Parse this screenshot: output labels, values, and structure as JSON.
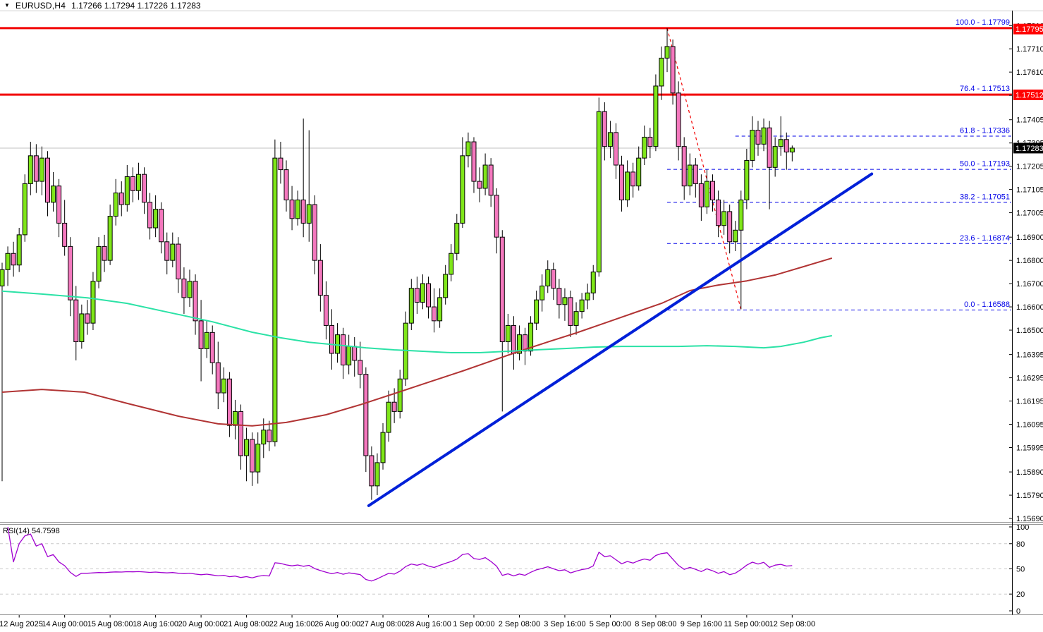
{
  "header": {
    "dropdown_icon": "▼",
    "symbol_period": "EURUSD,H4",
    "ohlc_text": "1.17266 1.17294 1.17226 1.17283"
  },
  "colors": {
    "bull": "#7FE619",
    "bear": "#F478BE",
    "wick": "#000000",
    "candle_outline": "#000000",
    "fib_solid_red": "#F20000",
    "fib_blue": "#0000E8",
    "fib_base_red_dashed": "#F20000",
    "trend_blue": "#0020D8",
    "ma_fast_teal": "#2BE2A6",
    "ma_slow_darkred": "#B13434",
    "rsi_purple": "#A000D0",
    "price_box_red_bg": "#FF0000",
    "price_box_black_bg": "#000000",
    "price_box_text": "#FFFFFF",
    "axis_text": "#000000",
    "rsi_grid_dash": "#C8C8C8",
    "current_price_line": "#C0C0C0",
    "separator": "#999999",
    "top_border": "#CCCCCC",
    "axis_line": "#000000"
  },
  "price_axis": {
    "labels": [
      {
        "text": "1.17810",
        "price": 1.1781
      },
      {
        "text": "1.17710",
        "price": 1.1771
      },
      {
        "text": "1.17610",
        "price": 1.1761
      },
      {
        "text": "1.17510",
        "price": 1.1751
      },
      {
        "text": "1.17405",
        "price": 1.17405
      },
      {
        "text": "1.17305",
        "price": 1.17305
      },
      {
        "text": "1.17205",
        "price": 1.17205
      },
      {
        "text": "1.17105",
        "price": 1.17105
      },
      {
        "text": "1.17005",
        "price": 1.17005
      },
      {
        "text": "1.16900",
        "price": 1.169
      },
      {
        "text": "1.16800",
        "price": 1.168
      },
      {
        "text": "1.16700",
        "price": 1.167
      },
      {
        "text": "1.16600",
        "price": 1.166
      },
      {
        "text": "1.16500",
        "price": 1.165
      },
      {
        "text": "1.16395",
        "price": 1.16395
      },
      {
        "text": "1.16295",
        "price": 1.16295
      },
      {
        "text": "1.16195",
        "price": 1.16195
      },
      {
        "text": "1.16095",
        "price": 1.16095
      },
      {
        "text": "1.15995",
        "price": 1.15995
      },
      {
        "text": "1.15890",
        "price": 1.1589
      },
      {
        "text": "1.15790",
        "price": 1.1579
      },
      {
        "text": "1.15690",
        "price": 1.1569
      }
    ],
    "boxes": [
      {
        "text": "1.17795",
        "price": 1.17795,
        "bg": "red"
      },
      {
        "text": "1.17512",
        "price": 1.17512,
        "bg": "red"
      },
      {
        "text": "1.17283",
        "price": 1.17283,
        "bg": "black"
      }
    ]
  },
  "time_axis": {
    "labels": [
      {
        "text": "12 Aug 2025",
        "i": 3
      },
      {
        "text": "14 Aug 00:00",
        "i": 11
      },
      {
        "text": "15 Aug 08:00",
        "i": 19
      },
      {
        "text": "18 Aug 16:00",
        "i": 27
      },
      {
        "text": "20 Aug 00:00",
        "i": 35
      },
      {
        "text": "21 Aug 08:00",
        "i": 43
      },
      {
        "text": "22 Aug 16:00",
        "i": 51
      },
      {
        "text": "26 Aug 00:00",
        "i": 59
      },
      {
        "text": "27 Aug 08:00",
        "i": 67
      },
      {
        "text": "28 Aug 16:00",
        "i": 75
      },
      {
        "text": "1 Sep 00:00",
        "i": 83
      },
      {
        "text": "2 Sep 08:00",
        "i": 91
      },
      {
        "text": "3 Sep 16:00",
        "i": 99
      },
      {
        "text": "5 Sep 00:00",
        "i": 107
      },
      {
        "text": "8 Sep 08:00",
        "i": 115
      },
      {
        "text": "9 Sep 16:00",
        "i": 123
      },
      {
        "text": "11 Sep 00:00",
        "i": 131
      },
      {
        "text": "12 Sep 08:00",
        "i": 139
      }
    ]
  },
  "overlays": {
    "fib_solid": [
      {
        "label": "100.0 - 1.17799",
        "price": 1.17799
      },
      {
        "label": "76.4 - 1.17513",
        "price": 1.17513
      }
    ],
    "fib_dashed": [
      {
        "label": "61.8 - 1.17336",
        "price": 1.17336,
        "start_i": 129
      },
      {
        "label": "50.0 - 1.17193",
        "price": 1.17193,
        "start_i": 117
      },
      {
        "label": "38.2 - 1.17051",
        "price": 1.17051,
        "start_i": 117
      },
      {
        "label": "23.6 - 1.16874",
        "price": 1.16874,
        "start_i": 117
      },
      {
        "label": "0.0 - 1.16588",
        "price": 1.16588,
        "start_i": 117
      }
    ],
    "fib_base_dashed_red": {
      "from_i": 117,
      "from_price": 1.17799,
      "to_i": 130,
      "to_price": 1.16588
    },
    "trend_line": {
      "from_i": 64.5,
      "from_price": 1.15745,
      "to_i": 153,
      "to_price": 1.17172
    },
    "ma_fast_points": [
      [
        0,
        1.16668
      ],
      [
        7,
        1.16655
      ],
      [
        15,
        1.16639
      ],
      [
        22,
        1.16615
      ],
      [
        29,
        1.16578
      ],
      [
        37,
        1.16536
      ],
      [
        44,
        1.16491
      ],
      [
        49,
        1.16467
      ],
      [
        54,
        1.16448
      ],
      [
        59,
        1.16436
      ],
      [
        64,
        1.16424
      ],
      [
        69,
        1.16415
      ],
      [
        74,
        1.16409
      ],
      [
        79,
        1.16403
      ],
      [
        84,
        1.16403
      ],
      [
        89,
        1.16409
      ],
      [
        94,
        1.16415
      ],
      [
        99,
        1.16421
      ],
      [
        104,
        1.16427
      ],
      [
        109,
        1.1643
      ],
      [
        119,
        1.1643
      ],
      [
        124,
        1.16433
      ],
      [
        129,
        1.1643
      ],
      [
        134,
        1.16424
      ],
      [
        137,
        1.1643
      ],
      [
        141,
        1.16448
      ],
      [
        144,
        1.16467
      ],
      [
        146,
        1.16476
      ]
    ],
    "ma_slow_points": [
      [
        0,
        1.16233
      ],
      [
        7,
        1.16245
      ],
      [
        14.5,
        1.16233
      ],
      [
        22,
        1.16185
      ],
      [
        31,
        1.1613
      ],
      [
        38,
        1.16097
      ],
      [
        44,
        1.16088
      ],
      [
        50,
        1.16103
      ],
      [
        57,
        1.16136
      ],
      [
        63,
        1.16179
      ],
      [
        69,
        1.16227
      ],
      [
        75,
        1.16276
      ],
      [
        81,
        1.16324
      ],
      [
        86,
        1.16367
      ],
      [
        91,
        1.16409
      ],
      [
        96,
        1.16449
      ],
      [
        101,
        1.16488
      ],
      [
        106,
        1.1653
      ],
      [
        111,
        1.16573
      ],
      [
        116,
        1.16615
      ],
      [
        121,
        1.1667
      ],
      [
        126,
        1.16694
      ],
      [
        131,
        1.16712
      ],
      [
        136,
        1.16737
      ],
      [
        141,
        1.16773
      ],
      [
        146,
        1.1681
      ]
    ]
  },
  "rsi": {
    "label": "RSI(14) 54.7598",
    "period": 14,
    "value": 54.7598,
    "axis_labels": [
      100,
      80,
      50,
      20,
      0
    ],
    "dashed_levels": [
      80,
      50,
      20
    ]
  },
  "chart_data": {
    "type": "candlestick",
    "title": "EURUSD,H4",
    "symbol": "EURUSD",
    "timeframe": "H4",
    "ylim": [
      1.15675,
      1.17875
    ],
    "last_ohlc": {
      "open": 1.17266,
      "high": 1.17294,
      "low": 1.17226,
      "close": 1.17283
    },
    "x_first_label": "12 Aug 2025",
    "x_last_label": "12 Sep 08:00",
    "candles": [
      [
        1.1669,
        1.1679,
        1.1585,
        1.1676
      ],
      [
        1.1676,
        1.1686,
        1.1669,
        1.1683
      ],
      [
        1.1683,
        1.1688,
        1.1673,
        1.1678
      ],
      [
        1.1678,
        1.1694,
        1.1675,
        1.1691
      ],
      [
        1.1691,
        1.1717,
        1.1688,
        1.1713
      ],
      [
        1.1713,
        1.1731,
        1.1708,
        1.1725
      ],
      [
        1.1725,
        1.173,
        1.1709,
        1.1714
      ],
      [
        1.1714,
        1.1729,
        1.1708,
        1.1724
      ],
      [
        1.1724,
        1.1727,
        1.1699,
        1.1705
      ],
      [
        1.1705,
        1.1718,
        1.1701,
        1.1712
      ],
      [
        1.1712,
        1.1715,
        1.169,
        1.1696
      ],
      [
        1.1696,
        1.1706,
        1.1682,
        1.1686
      ],
      [
        1.1686,
        1.169,
        1.1656,
        1.1663
      ],
      [
        1.1663,
        1.1669,
        1.1637,
        1.1645
      ],
      [
        1.1645,
        1.1661,
        1.1642,
        1.1657
      ],
      [
        1.1657,
        1.1663,
        1.1648,
        1.1653
      ],
      [
        1.1653,
        1.1675,
        1.165,
        1.1671
      ],
      [
        1.1671,
        1.169,
        1.1668,
        1.1686
      ],
      [
        1.1686,
        1.1691,
        1.1675,
        1.168
      ],
      [
        1.168,
        1.1704,
        1.1678,
        1.1699
      ],
      [
        1.1699,
        1.1715,
        1.1695,
        1.1709
      ],
      [
        1.1709,
        1.1714,
        1.1699,
        1.1704
      ],
      [
        1.1704,
        1.1721,
        1.1701,
        1.1716
      ],
      [
        1.1716,
        1.172,
        1.1705,
        1.171
      ],
      [
        1.171,
        1.1722,
        1.1706,
        1.1717
      ],
      [
        1.1717,
        1.172,
        1.17,
        1.1705
      ],
      [
        1.1705,
        1.1709,
        1.1689,
        1.1694
      ],
      [
        1.1694,
        1.1708,
        1.169,
        1.1702
      ],
      [
        1.1702,
        1.1705,
        1.1683,
        1.1688
      ],
      [
        1.1688,
        1.1692,
        1.1674,
        1.168
      ],
      [
        1.168,
        1.1692,
        1.1677,
        1.1687
      ],
      [
        1.1687,
        1.169,
        1.1666,
        1.1672
      ],
      [
        1.1672,
        1.1677,
        1.1657,
        1.1664
      ],
      [
        1.1664,
        1.1676,
        1.166,
        1.1671
      ],
      [
        1.1671,
        1.1674,
        1.1648,
        1.1654
      ],
      [
        1.1654,
        1.1663,
        1.1628,
        1.1642
      ],
      [
        1.1642,
        1.1654,
        1.1638,
        1.1649
      ],
      [
        1.1649,
        1.1652,
        1.1631,
        1.1636
      ],
      [
        1.1636,
        1.1645,
        1.1616,
        1.1623
      ],
      [
        1.1623,
        1.1634,
        1.1619,
        1.1629
      ],
      [
        1.1629,
        1.1632,
        1.1604,
        1.1609
      ],
      [
        1.1609,
        1.162,
        1.1603,
        1.1615
      ],
      [
        1.1615,
        1.1618,
        1.159,
        1.1596
      ],
      [
        1.1596,
        1.1608,
        1.1585,
        1.1603
      ],
      [
        1.1603,
        1.1606,
        1.1583,
        1.1589
      ],
      [
        1.1589,
        1.1606,
        1.1584,
        1.1601
      ],
      [
        1.1601,
        1.1612,
        1.1595,
        1.1607
      ],
      [
        1.1607,
        1.1611,
        1.1598,
        1.1602
      ],
      [
        1.1602,
        1.1732,
        1.16,
        1.1724
      ],
      [
        1.1724,
        1.1731,
        1.1713,
        1.1719
      ],
      [
        1.1719,
        1.1723,
        1.1701,
        1.1706
      ],
      [
        1.1706,
        1.1712,
        1.1693,
        1.1698
      ],
      [
        1.1698,
        1.171,
        1.1695,
        1.1706
      ],
      [
        1.1706,
        1.1741,
        1.169,
        1.1696
      ],
      [
        1.1696,
        1.1736,
        1.1688,
        1.1704
      ],
      [
        1.1704,
        1.1708,
        1.1674,
        1.168
      ],
      [
        1.168,
        1.1687,
        1.1658,
        1.1665
      ],
      [
        1.1665,
        1.1671,
        1.1646,
        1.1652
      ],
      [
        1.1652,
        1.1659,
        1.1633,
        1.164
      ],
      [
        1.164,
        1.1653,
        1.1636,
        1.1648
      ],
      [
        1.1648,
        1.1651,
        1.1629,
        1.1635
      ],
      [
        1.1635,
        1.1648,
        1.1631,
        1.1643
      ],
      [
        1.1643,
        1.1647,
        1.163,
        1.1637
      ],
      [
        1.1637,
        1.1645,
        1.1625,
        1.1631
      ],
      [
        1.1631,
        1.1634,
        1.1589,
        1.1596
      ],
      [
        1.1596,
        1.16,
        1.1577,
        1.1583
      ],
      [
        1.1583,
        1.1597,
        1.1579,
        1.1593
      ],
      [
        1.1593,
        1.161,
        1.159,
        1.1606
      ],
      [
        1.1606,
        1.1624,
        1.1602,
        1.1619
      ],
      [
        1.1619,
        1.1625,
        1.161,
        1.1615
      ],
      [
        1.1615,
        1.1633,
        1.1612,
        1.1629
      ],
      [
        1.1629,
        1.1658,
        1.1626,
        1.1653
      ],
      [
        1.1653,
        1.1672,
        1.165,
        1.1668
      ],
      [
        1.1668,
        1.1673,
        1.1657,
        1.1662
      ],
      [
        1.1662,
        1.1674,
        1.1659,
        1.167
      ],
      [
        1.167,
        1.1673,
        1.1655,
        1.166
      ],
      [
        1.166,
        1.1668,
        1.1649,
        1.1654
      ],
      [
        1.1654,
        1.1668,
        1.1651,
        1.1664
      ],
      [
        1.1664,
        1.1678,
        1.1661,
        1.1674
      ],
      [
        1.1674,
        1.1687,
        1.1671,
        1.1683
      ],
      [
        1.1683,
        1.17,
        1.168,
        1.1696
      ],
      [
        1.1696,
        1.1733,
        1.1694,
        1.1725
      ],
      [
        1.1725,
        1.1735,
        1.172,
        1.1731
      ],
      [
        1.1731,
        1.1733,
        1.1709,
        1.1714
      ],
      [
        1.1714,
        1.172,
        1.1705,
        1.1711
      ],
      [
        1.1711,
        1.1726,
        1.1708,
        1.1721
      ],
      [
        1.1721,
        1.1724,
        1.1703,
        1.1708
      ],
      [
        1.1708,
        1.1711,
        1.1683,
        1.169
      ],
      [
        1.169,
        1.1693,
        1.1615,
        1.1645
      ],
      [
        1.1645,
        1.1657,
        1.164,
        1.1652
      ],
      [
        1.1652,
        1.1656,
        1.1633,
        1.164
      ],
      [
        1.164,
        1.1652,
        1.1637,
        1.1648
      ],
      [
        1.1648,
        1.1651,
        1.1635,
        1.1641
      ],
      [
        1.1641,
        1.1656,
        1.1639,
        1.1653
      ],
      [
        1.1653,
        1.1667,
        1.165,
        1.1663
      ],
      [
        1.1663,
        1.1674,
        1.1658,
        1.1669
      ],
      [
        1.1669,
        1.168,
        1.1666,
        1.1676
      ],
      [
        1.1676,
        1.1679,
        1.1663,
        1.1668
      ],
      [
        1.1668,
        1.1672,
        1.1655,
        1.1661
      ],
      [
        1.1661,
        1.1668,
        1.1654,
        1.1664
      ],
      [
        1.1664,
        1.1667,
        1.1647,
        1.1652
      ],
      [
        1.1652,
        1.1662,
        1.1648,
        1.1658
      ],
      [
        1.1658,
        1.1666,
        1.1655,
        1.1663
      ],
      [
        1.1663,
        1.167,
        1.1659,
        1.1666
      ],
      [
        1.1666,
        1.1678,
        1.1663,
        1.1675
      ],
      [
        1.1675,
        1.175,
        1.1673,
        1.1744
      ],
      [
        1.1744,
        1.1748,
        1.1723,
        1.1729
      ],
      [
        1.1729,
        1.174,
        1.1724,
        1.1735
      ],
      [
        1.1735,
        1.1739,
        1.1715,
        1.1721
      ],
      [
        1.1721,
        1.1725,
        1.1701,
        1.1706
      ],
      [
        1.1706,
        1.1723,
        1.1703,
        1.1718
      ],
      [
        1.1718,
        1.1722,
        1.1707,
        1.1712
      ],
      [
        1.1712,
        1.1729,
        1.171,
        1.1724
      ],
      [
        1.1724,
        1.1738,
        1.1721,
        1.1733
      ],
      [
        1.1733,
        1.1737,
        1.1724,
        1.1729
      ],
      [
        1.1729,
        1.176,
        1.1727,
        1.1755
      ],
      [
        1.1755,
        1.1772,
        1.1749,
        1.1767
      ],
      [
        1.1767,
        1.17799,
        1.1761,
        1.1772
      ],
      [
        1.1772,
        1.1775,
        1.1747,
        1.1752
      ],
      [
        1.1752,
        1.1757,
        1.1723,
        1.1729
      ],
      [
        1.1729,
        1.1733,
        1.1706,
        1.1712
      ],
      [
        1.1712,
        1.1726,
        1.1708,
        1.1721
      ],
      [
        1.1721,
        1.1724,
        1.1707,
        1.1713
      ],
      [
        1.1713,
        1.1717,
        1.1697,
        1.1703
      ],
      [
        1.1703,
        1.1719,
        1.17,
        1.1714
      ],
      [
        1.1714,
        1.1717,
        1.1701,
        1.1706
      ],
      [
        1.1706,
        1.171,
        1.169,
        1.1695
      ],
      [
        1.1695,
        1.1706,
        1.1691,
        1.1701
      ],
      [
        1.1701,
        1.1704,
        1.1683,
        1.1688
      ],
      [
        1.1688,
        1.1697,
        1.1684,
        1.1693
      ],
      [
        1.1693,
        1.171,
        1.1659,
        1.1706
      ],
      [
        1.1706,
        1.1728,
        1.1702,
        1.1723
      ],
      [
        1.1723,
        1.1742,
        1.172,
        1.1736
      ],
      [
        1.1736,
        1.174,
        1.1725,
        1.173
      ],
      [
        1.173,
        1.1741,
        1.1727,
        1.1737
      ],
      [
        1.1737,
        1.174,
        1.1702,
        1.172
      ],
      [
        1.172,
        1.1733,
        1.1716,
        1.1729
      ],
      [
        1.1729,
        1.1742,
        1.1725,
        1.1732
      ],
      [
        1.1732,
        1.1735,
        1.1719,
        1.17266
      ],
      [
        1.17266,
        1.17294,
        1.17226,
        1.17283
      ]
    ]
  }
}
